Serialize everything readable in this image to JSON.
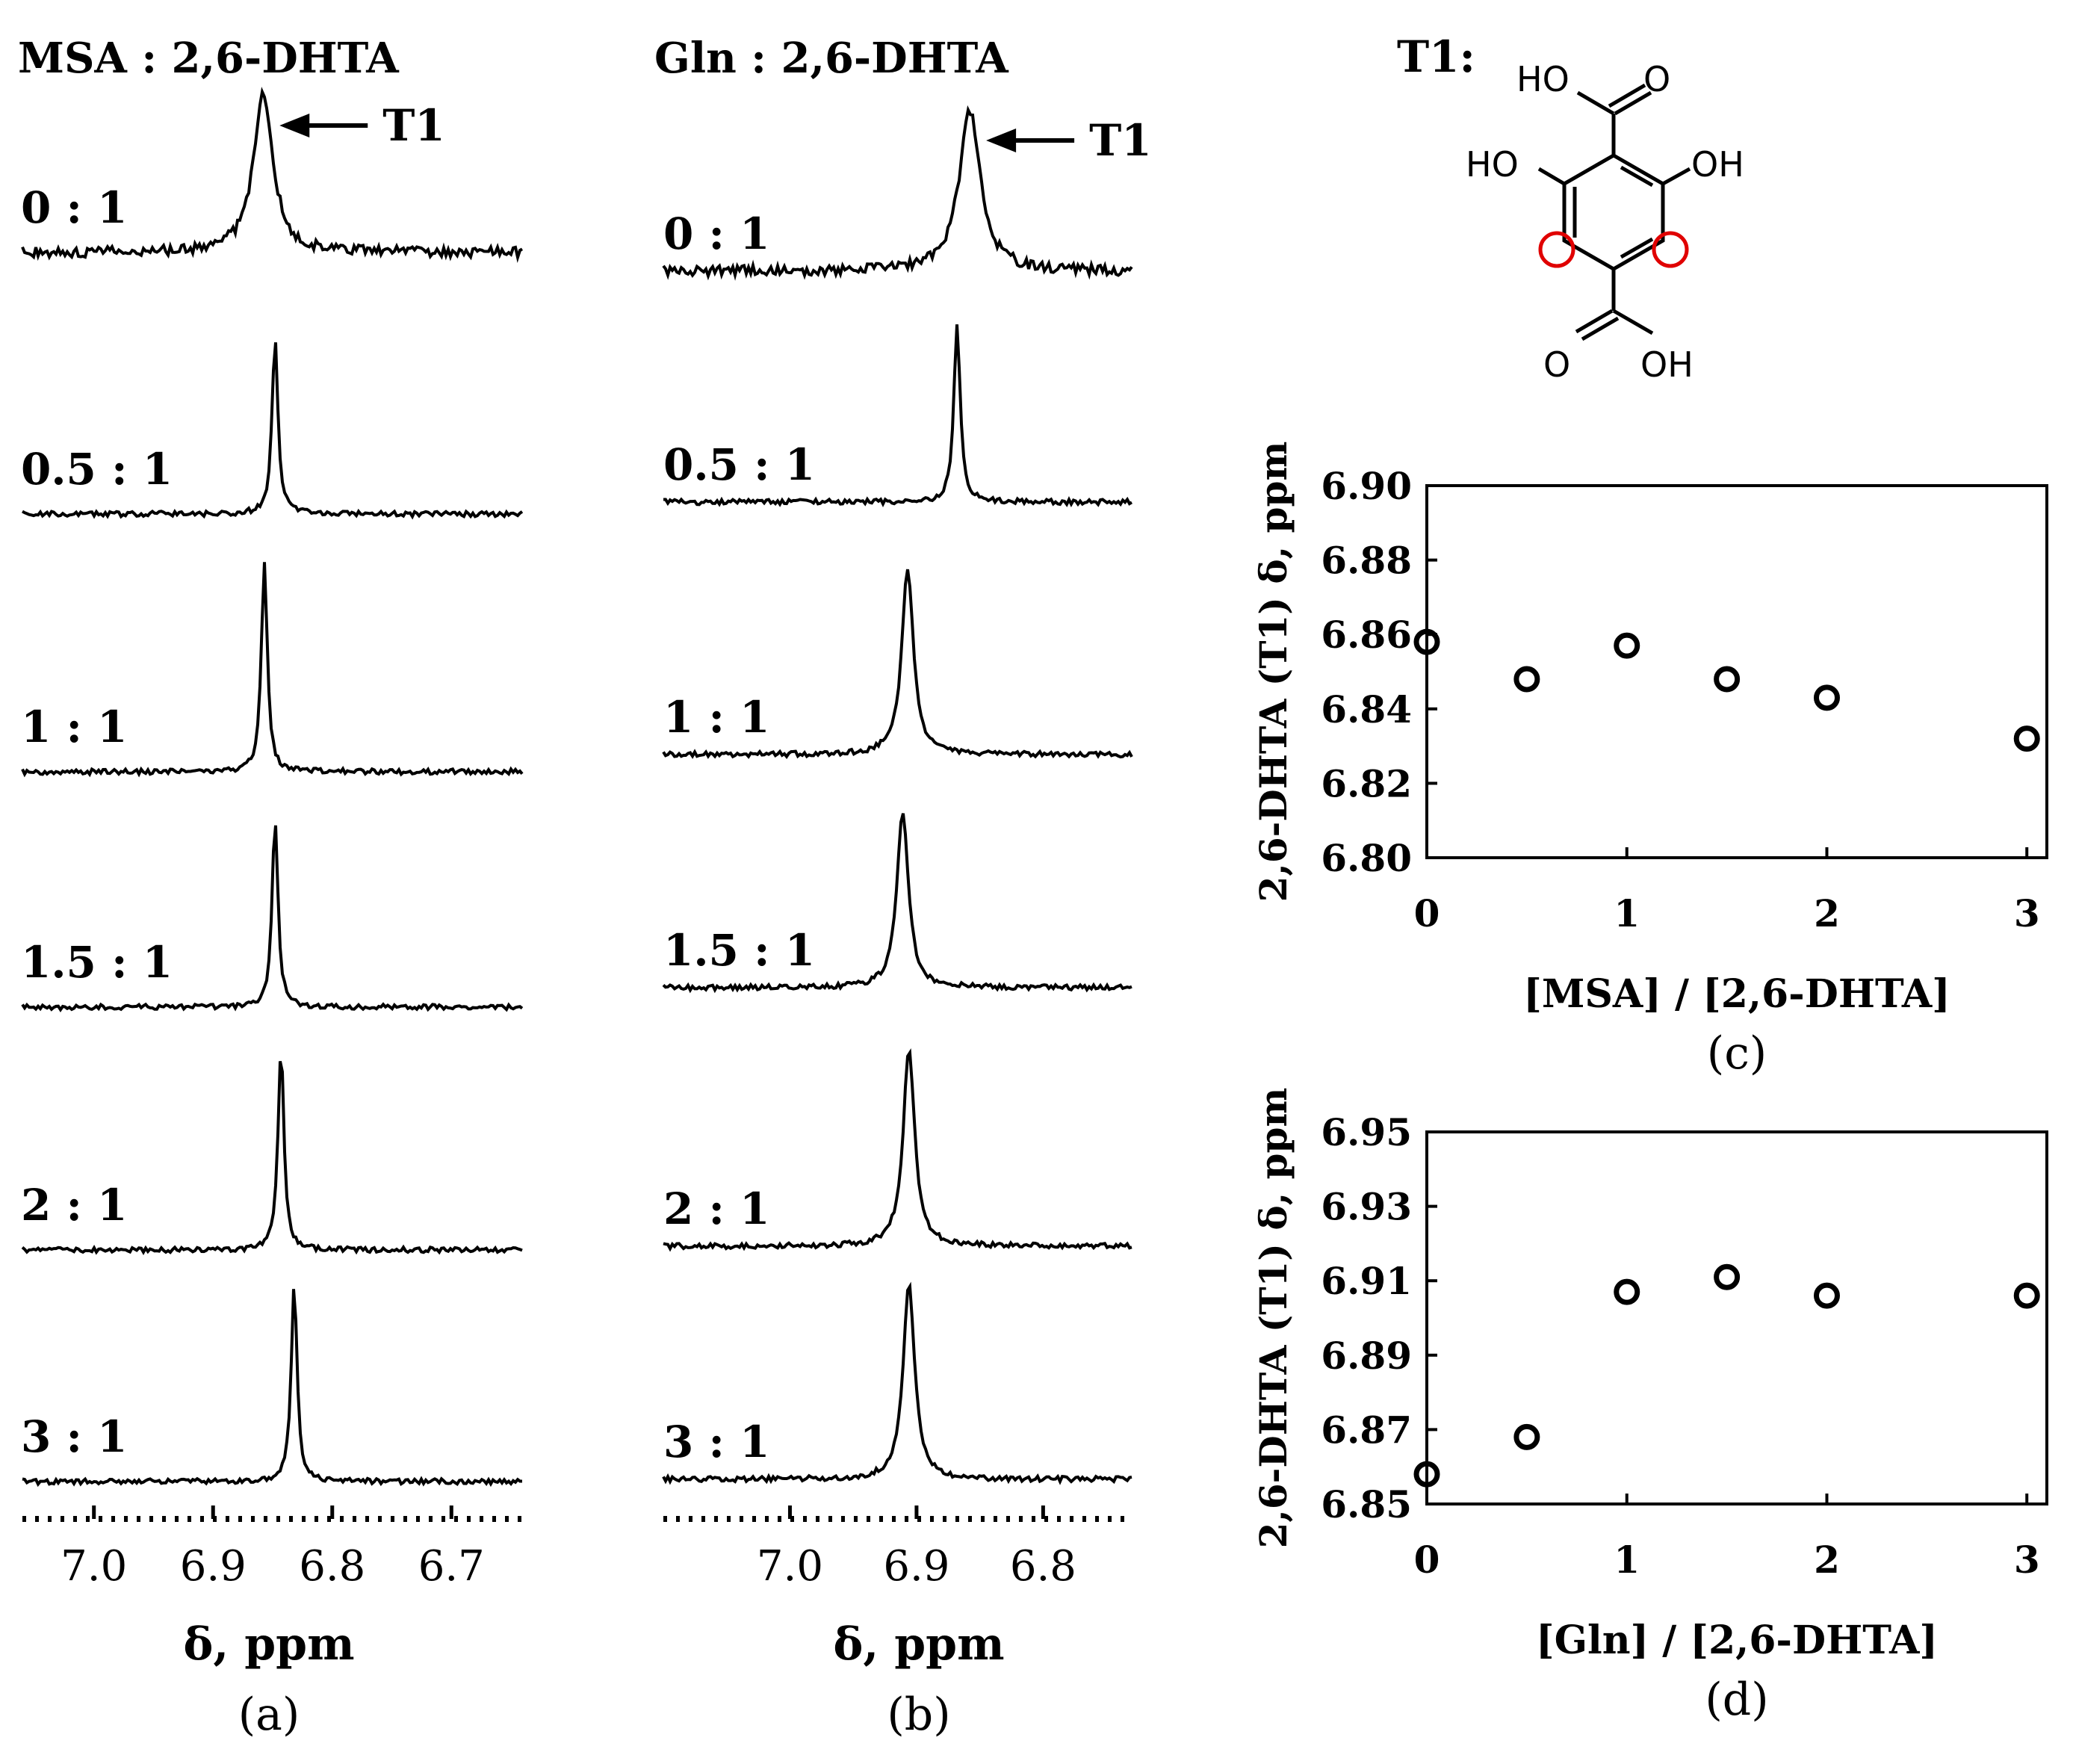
{
  "chart_data": [
    {
      "id": "a",
      "type": "nmr_stack",
      "title": "MSA : 2,6-DHTA",
      "caption": "(a)",
      "xlabel": "δ, ppm",
      "xlim": [
        7.06,
        6.64
      ],
      "xticks": [
        "7.0",
        "6.9",
        "6.8",
        "6.7"
      ],
      "peak_label": "T1",
      "spectra": [
        {
          "ratio": "0 : 1",
          "shift": 6.858,
          "width": "broad"
        },
        {
          "ratio": "0.5 : 1",
          "shift": 6.848,
          "width": "sharp"
        },
        {
          "ratio": "1 : 1",
          "shift": 6.857,
          "width": "sharp"
        },
        {
          "ratio": "1.5 : 1",
          "shift": 6.848,
          "width": "sharp"
        },
        {
          "ratio": "2 : 1",
          "shift": 6.843,
          "width": "sharp"
        },
        {
          "ratio": "3 : 1",
          "shift": 6.832,
          "width": "sharp"
        }
      ]
    },
    {
      "id": "b",
      "type": "nmr_stack",
      "title": "Gln : 2,6-DHTA",
      "caption": "(b)",
      "xlabel": "δ, ppm",
      "xlim": [
        7.1,
        6.73
      ],
      "xticks": [
        "7.0",
        "6.9",
        "6.8"
      ],
      "peak_label": "T1",
      "spectra": [
        {
          "ratio": "0 : 1",
          "shift": 6.858,
          "width": "broad"
        },
        {
          "ratio": "0.5 : 1",
          "shift": 6.868,
          "width": "sharp"
        },
        {
          "ratio": "1 : 1",
          "shift": 6.907,
          "width": "medium"
        },
        {
          "ratio": "1.5 : 1",
          "shift": 6.911,
          "width": "medium"
        },
        {
          "ratio": "2 : 1",
          "shift": 6.906,
          "width": "medium"
        },
        {
          "ratio": "3 : 1",
          "shift": 6.906,
          "width": "medium"
        }
      ]
    },
    {
      "id": "c",
      "type": "scatter",
      "caption": "(c)",
      "xlabel": "[MSA] / [2,6-DHTA]",
      "ylabel": "2,6-DHTA (T1)  δ, ppm",
      "xlim": [
        0,
        3.1
      ],
      "ylim": [
        6.8,
        6.9
      ],
      "xticks": [
        "0",
        "1",
        "2",
        "3"
      ],
      "yticks": [
        "6.80",
        "6.82",
        "6.84",
        "6.86",
        "6.88",
        "6.90"
      ],
      "x": [
        0,
        0.5,
        1,
        1.5,
        2,
        3
      ],
      "y": [
        6.858,
        6.848,
        6.857,
        6.848,
        6.843,
        6.832
      ]
    },
    {
      "id": "d",
      "type": "scatter",
      "caption": "(d)",
      "xlabel": "[Gln] / [2,6-DHTA]",
      "ylabel": "2,6-DHTA (T1)  δ, ppm",
      "xlim": [
        0,
        3.1
      ],
      "ylim": [
        6.85,
        6.95
      ],
      "xticks": [
        "0",
        "1",
        "2",
        "3"
      ],
      "yticks": [
        "6.85",
        "6.87",
        "6.89",
        "6.91",
        "6.93",
        "6.95"
      ],
      "x": [
        0,
        0.5,
        1,
        1.5,
        2,
        3
      ],
      "y": [
        6.858,
        6.868,
        6.907,
        6.911,
        6.906,
        6.906
      ]
    }
  ],
  "structure": {
    "label": "T1:",
    "groups": {
      "top_cooh_oh": "HO",
      "top_cooh_o": "O",
      "left_oh": "HO",
      "right_oh": "OH",
      "bottom_cooh_o": "O",
      "bottom_cooh_oh": "OH"
    },
    "highlight_color": "#e00000"
  },
  "colors": {
    "ink": "#000000",
    "highlight": "#e00000"
  }
}
